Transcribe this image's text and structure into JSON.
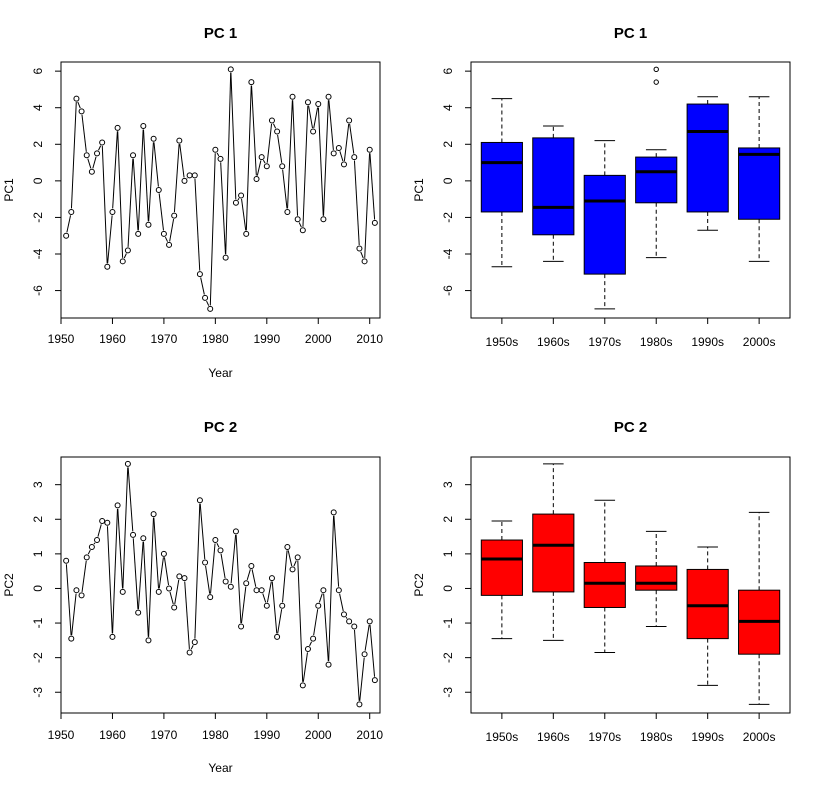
{
  "colors": {
    "pc1_box": "#0000FF",
    "pc2_box": "#FF0000",
    "line": "#000000"
  },
  "chart_data": [
    {
      "id": "pc1_line",
      "type": "line",
      "title": "PC 1",
      "xlabel": "Year",
      "ylabel": "PC1",
      "xlim": [
        1950,
        2012
      ],
      "ylim": [
        -7.5,
        6.5
      ],
      "xticks": [
        1950,
        1960,
        1970,
        1980,
        1990,
        2000,
        2010
      ],
      "yticks": [
        -6,
        -4,
        -2,
        0,
        2,
        4,
        6
      ],
      "marker": "open-circle",
      "x": [
        1951,
        1952,
        1953,
        1954,
        1955,
        1956,
        1957,
        1958,
        1959,
        1960,
        1961,
        1962,
        1963,
        1964,
        1965,
        1966,
        1967,
        1968,
        1969,
        1970,
        1971,
        1972,
        1973,
        1974,
        1975,
        1976,
        1977,
        1978,
        1979,
        1980,
        1981,
        1982,
        1983,
        1984,
        1985,
        1986,
        1987,
        1988,
        1989,
        1990,
        1991,
        1992,
        1993,
        1994,
        1995,
        1996,
        1997,
        1998,
        1999,
        2000,
        2001,
        2002,
        2003,
        2004,
        2005,
        2006,
        2007,
        2008,
        2009,
        2010,
        2011
      ],
      "y": [
        -3.0,
        -1.7,
        4.5,
        3.8,
        1.4,
        0.5,
        1.5,
        2.1,
        -4.7,
        -1.7,
        2.9,
        -4.4,
        -3.8,
        1.4,
        -2.9,
        3.0,
        -2.4,
        2.3,
        -0.5,
        -2.9,
        -3.5,
        -1.9,
        2.2,
        0.0,
        0.3,
        0.3,
        -5.1,
        -6.4,
        -7.0,
        1.7,
        1.2,
        -4.2,
        6.1,
        -1.2,
        -0.8,
        -2.9,
        5.4,
        0.1,
        1.3,
        0.8,
        3.3,
        2.7,
        0.8,
        -1.7,
        4.6,
        -2.1,
        -2.7,
        4.3,
        2.7,
        4.2,
        -2.1,
        4.6,
        1.5,
        1.8,
        0.9,
        3.3,
        1.3,
        -3.7,
        -4.4,
        1.7,
        -2.3
      ]
    },
    {
      "id": "pc1_box",
      "type": "box",
      "title": "PC 1",
      "xlabel": "",
      "ylabel": "PC1",
      "ylim": [
        -7.5,
        6.5
      ],
      "yticks": [
        -6,
        -4,
        -2,
        0,
        2,
        4,
        6
      ],
      "fill": "#0000FF",
      "categories": [
        "1950s",
        "1960s",
        "1970s",
        "1980s",
        "1990s",
        "2000s"
      ],
      "boxes": [
        {
          "min": -4.7,
          "q1": -1.7,
          "median": 1.0,
          "q3": 2.1,
          "max": 4.5,
          "outliers": []
        },
        {
          "min": -4.4,
          "q1": -2.95,
          "median": -1.45,
          "q3": 2.35,
          "max": 3.0,
          "outliers": []
        },
        {
          "min": -7.0,
          "q1": -5.1,
          "median": -1.1,
          "q3": 0.3,
          "max": 2.2,
          "outliers": []
        },
        {
          "min": -4.2,
          "q1": -1.2,
          "median": 0.5,
          "q3": 1.3,
          "max": 1.7,
          "outliers": [
            5.4,
            6.1
          ]
        },
        {
          "min": -2.7,
          "q1": -1.7,
          "median": 2.7,
          "q3": 4.2,
          "max": 4.6,
          "outliers": []
        },
        {
          "min": -4.4,
          "q1": -2.1,
          "median": 1.45,
          "q3": 1.8,
          "max": 4.6,
          "outliers": []
        }
      ]
    },
    {
      "id": "pc2_line",
      "type": "line",
      "title": "PC 2",
      "xlabel": "Year",
      "ylabel": "PC2",
      "xlim": [
        1950,
        2012
      ],
      "ylim": [
        -3.6,
        3.8
      ],
      "xticks": [
        1950,
        1960,
        1970,
        1980,
        1990,
        2000,
        2010
      ],
      "yticks": [
        -3,
        -2,
        -1,
        0,
        1,
        2,
        3
      ],
      "marker": "open-circle",
      "x": [
        1951,
        1952,
        1953,
        1954,
        1955,
        1956,
        1957,
        1958,
        1959,
        1960,
        1961,
        1962,
        1963,
        1964,
        1965,
        1966,
        1967,
        1968,
        1969,
        1970,
        1971,
        1972,
        1973,
        1974,
        1975,
        1976,
        1977,
        1978,
        1979,
        1980,
        1981,
        1982,
        1983,
        1984,
        1985,
        1986,
        1987,
        1988,
        1989,
        1990,
        1991,
        1992,
        1993,
        1994,
        1995,
        1996,
        1997,
        1998,
        1999,
        2000,
        2001,
        2002,
        2003,
        2004,
        2005,
        2006,
        2007,
        2008,
        2009,
        2010,
        2011
      ],
      "y": [
        0.8,
        -1.45,
        -0.05,
        -0.2,
        0.9,
        1.2,
        1.4,
        1.95,
        1.9,
        -1.4,
        2.4,
        -0.1,
        3.6,
        1.55,
        -0.7,
        1.45,
        -1.5,
        2.15,
        -0.1,
        1.0,
        0.0,
        -0.55,
        0.35,
        0.3,
        -1.85,
        -1.55,
        2.55,
        0.75,
        -0.25,
        1.4,
        1.1,
        0.2,
        0.05,
        1.65,
        -1.1,
        0.15,
        0.65,
        -0.05,
        -0.05,
        -0.5,
        0.3,
        -1.4,
        -0.5,
        1.2,
        0.55,
        0.9,
        -2.8,
        -1.75,
        -1.45,
        -0.5,
        -0.05,
        -2.2,
        2.2,
        -0.05,
        -0.75,
        -0.95,
        -1.1,
        -3.35,
        -1.9,
        -0.95,
        -2.65
      ]
    },
    {
      "id": "pc2_box",
      "type": "box",
      "title": "PC 2",
      "xlabel": "",
      "ylabel": "PC2",
      "ylim": [
        -3.6,
        3.8
      ],
      "yticks": [
        -3,
        -2,
        -1,
        0,
        1,
        2,
        3
      ],
      "fill": "#FF0000",
      "categories": [
        "1950s",
        "1960s",
        "1970s",
        "1980s",
        "1990s",
        "2000s"
      ],
      "boxes": [
        {
          "min": -1.45,
          "q1": -0.2,
          "median": 0.85,
          "q3": 1.4,
          "max": 1.95,
          "outliers": []
        },
        {
          "min": -1.5,
          "q1": -0.1,
          "median": 1.25,
          "q3": 2.15,
          "max": 3.6,
          "outliers": []
        },
        {
          "min": -1.85,
          "q1": -0.55,
          "median": 0.15,
          "q3": 0.75,
          "max": 2.55,
          "outliers": []
        },
        {
          "min": -1.1,
          "q1": -0.05,
          "median": 0.15,
          "q3": 0.65,
          "max": 1.65,
          "outliers": []
        },
        {
          "min": -2.8,
          "q1": -1.45,
          "median": -0.5,
          "q3": 0.55,
          "max": 1.2,
          "outliers": []
        },
        {
          "min": -3.35,
          "q1": -1.9,
          "median": -0.95,
          "q3": -0.05,
          "max": 2.2,
          "outliers": []
        }
      ]
    }
  ]
}
